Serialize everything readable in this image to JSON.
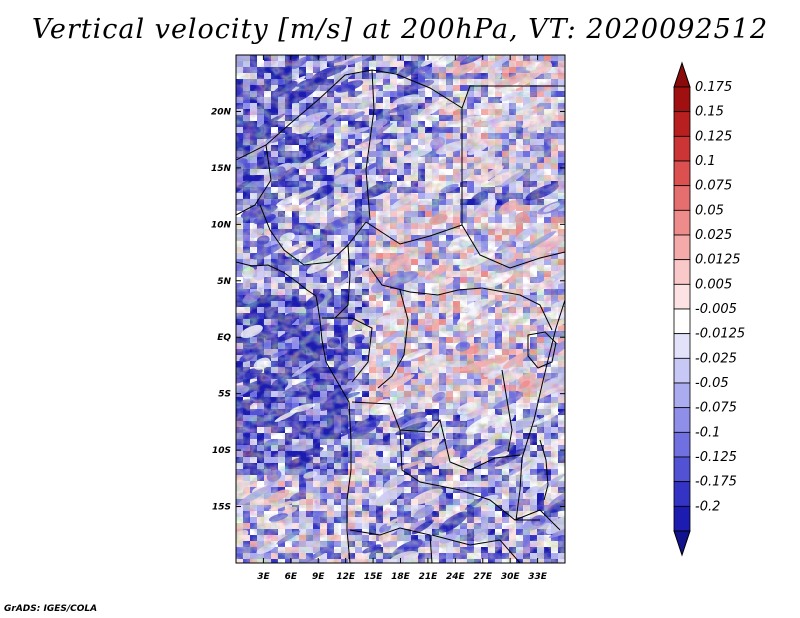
{
  "title": "Vertical velocity [m/s] at 200hPa, VT: 2020092512",
  "footer": "GrADS: IGES/COLA",
  "map": {
    "lon_range": [
      0,
      36
    ],
    "lat_range": [
      -20,
      25
    ],
    "lat_ticks": [
      {
        "value": 20,
        "label": "20N"
      },
      {
        "value": 15,
        "label": "15N"
      },
      {
        "value": 10,
        "label": "10N"
      },
      {
        "value": 5,
        "label": "5N"
      },
      {
        "value": 0,
        "label": "EQ"
      },
      {
        "value": -5,
        "label": "5S"
      },
      {
        "value": -10,
        "label": "10S"
      },
      {
        "value": -15,
        "label": "15S"
      }
    ],
    "lon_ticks": [
      {
        "value": 3,
        "label": "3E"
      },
      {
        "value": 6,
        "label": "6E"
      },
      {
        "value": 9,
        "label": "9E"
      },
      {
        "value": 12,
        "label": "12E"
      },
      {
        "value": 15,
        "label": "15E"
      },
      {
        "value": 18,
        "label": "18E"
      },
      {
        "value": 21,
        "label": "21E"
      },
      {
        "value": 24,
        "label": "24E"
      },
      {
        "value": 27,
        "label": "27E"
      },
      {
        "value": 30,
        "label": "30E"
      },
      {
        "value": 33,
        "label": "33E"
      }
    ]
  },
  "colorbar": {
    "levels": [
      {
        "label": "0.175",
        "color": "#a01010"
      },
      {
        "label": "0.15",
        "color": "#b82020"
      },
      {
        "label": "0.125",
        "color": "#cc3535"
      },
      {
        "label": "0.1",
        "color": "#dc5050"
      },
      {
        "label": "0.075",
        "color": "#e56e6e"
      },
      {
        "label": "0.05",
        "color": "#ee8c8c"
      },
      {
        "label": "0.025",
        "color": "#f5aaaa"
      },
      {
        "label": "0.0125",
        "color": "#f9c8c8"
      },
      {
        "label": "0.005",
        "color": "#fce2e2"
      },
      {
        "label": "-0.005",
        "color": "#ffffff"
      },
      {
        "label": "-0.0125",
        "color": "#e2e2fa"
      },
      {
        "label": "-0.025",
        "color": "#c8c8f6"
      },
      {
        "label": "-0.05",
        "color": "#ababf0"
      },
      {
        "label": "-0.075",
        "color": "#8f8fea"
      },
      {
        "label": "-0.1",
        "color": "#7070e0"
      },
      {
        "label": "-0.125",
        "color": "#5252d4"
      },
      {
        "label": "-0.175",
        "color": "#3434c4"
      },
      {
        "label": "-0.2",
        "color": "#1c1cb0"
      }
    ],
    "top_arrow_color": "#8b0a0a",
    "bottom_arrow_color": "#12128e"
  }
}
